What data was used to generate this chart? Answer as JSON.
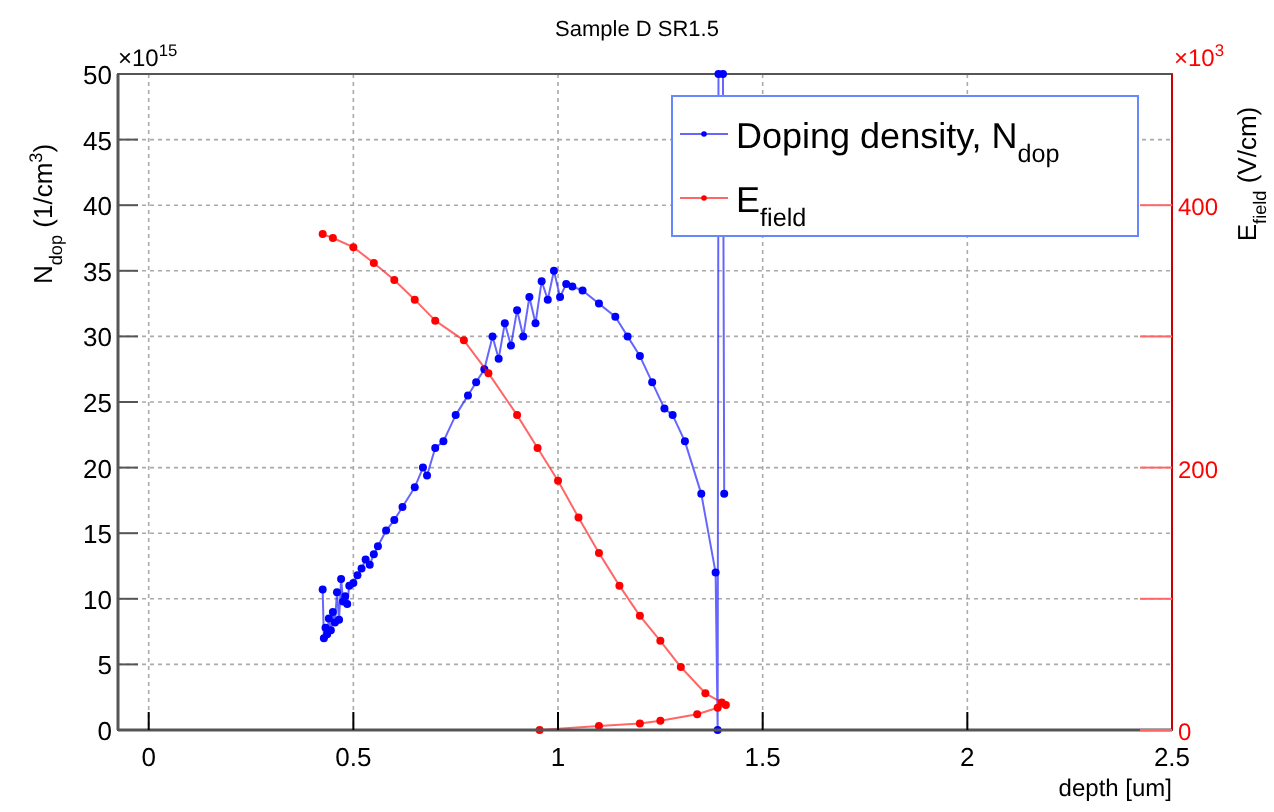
{
  "chart_data": {
    "type": "line",
    "title": "Sample D SR1.5",
    "xlabel": "depth [um]",
    "ylabel": "N$_{dop}$ (1/cm$^{3}$)",
    "y2label": "E$_{field}$ (V/cm)",
    "annotations": [
      "×10$^{15}$",
      "×10$^{3}$"
    ],
    "xlim": [
      -0.075,
      2.5
    ],
    "xticks": [
      0,
      0.5,
      1,
      1.5,
      2,
      2.5
    ],
    "ylim": [
      0,
      50
    ],
    "yticks": [
      0,
      5,
      10,
      15,
      20,
      25,
      30,
      35,
      40,
      45,
      50
    ],
    "y2lim": [
      0,
      500
    ],
    "y2ticks": [
      0,
      {
        "value": 100,
        "label": null
      },
      200,
      {
        "value": 300,
        "label": null
      },
      400
    ],
    "grid": true,
    "legend": "top right",
    "marker": "circle",
    "line_style": "solid",
    "series": [
      {
        "name": "Doping density, N$_{dop}$",
        "color": "#0000ff",
        "x": [
          0.425,
          0.428,
          0.432,
          0.436,
          0.44,
          0.445,
          0.45,
          0.455,
          0.46,
          0.465,
          0.47,
          0.475,
          0.48,
          0.485,
          0.49,
          0.5,
          0.51,
          0.52,
          0.53,
          0.54,
          0.55,
          0.56,
          0.58,
          0.6,
          0.62,
          0.65,
          0.67,
          0.68,
          0.7,
          0.72,
          0.75,
          0.78,
          0.8,
          0.82,
          0.84,
          0.855,
          0.87,
          0.885,
          0.9,
          0.915,
          0.93,
          0.945,
          0.96,
          0.975,
          0.99,
          1.005,
          1.02,
          1.035,
          1.06,
          1.1,
          1.14,
          1.17,
          1.2,
          1.23,
          1.26,
          1.28,
          1.31,
          1.35,
          1.385,
          1.39,
          1.392,
          1.403,
          1.406
        ],
        "values": [
          10.7,
          7,
          7.8,
          7.3,
          8.5,
          7.6,
          9,
          8.2,
          10.5,
          8.4,
          11.5,
          9.8,
          10.2,
          9.6,
          11,
          11.2,
          11.8,
          12.3,
          13,
          12.6,
          13.4,
          14,
          15.2,
          16,
          17,
          18.5,
          20,
          19.4,
          21.5,
          22,
          24,
          25.5,
          26.5,
          27.5,
          30,
          28.3,
          31,
          29.3,
          32,
          30,
          33,
          31,
          34.2,
          32.8,
          35,
          33,
          34,
          33.8,
          33.5,
          32.5,
          31.5,
          30,
          28.5,
          26.5,
          24.5,
          24,
          22,
          18,
          12,
          0,
          50,
          50,
          18
        ]
      },
      {
        "name": "E$_{field}$",
        "color": "#ff0000",
        "axis": "y2",
        "x": [
          0.425,
          0.45,
          0.5,
          0.55,
          0.6,
          0.65,
          0.7,
          0.77,
          0.83,
          0.9,
          0.95,
          1.0,
          1.05,
          1.1,
          1.15,
          1.2,
          1.25,
          1.3,
          1.36,
          1.4,
          1.41,
          1.39,
          1.34,
          1.25,
          1.2,
          1.1,
          0.955
        ],
        "values": [
          378,
          375,
          368,
          356,
          343,
          328,
          312,
          297,
          272,
          240,
          215,
          190,
          162,
          135,
          110,
          87,
          68,
          48,
          28,
          21,
          19,
          17,
          12,
          7,
          5,
          3,
          0
        ]
      }
    ]
  }
}
